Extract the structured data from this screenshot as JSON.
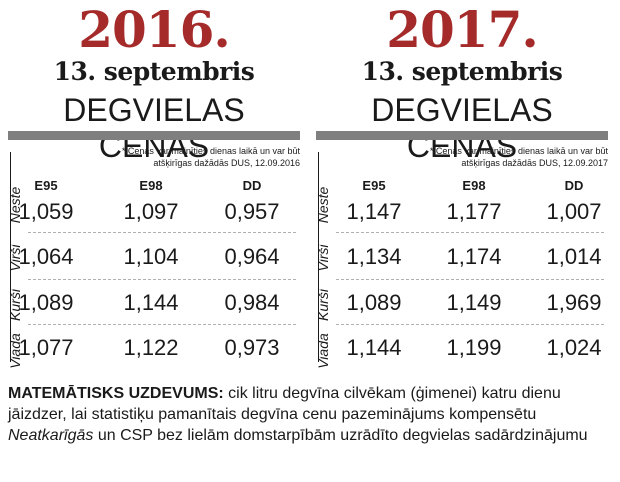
{
  "colors": {
    "year": "#a52a2a",
    "rule": "#7f7f7f",
    "text": "#1a1a1a"
  },
  "panels": [
    {
      "year": "2016.",
      "date": "13. septembris",
      "heading": "DEGVIELAS CENAS",
      "note_line1": "* Cenas var mainīties dienas laikā un var būt",
      "note_line2": "atšķirīgas dažādās DUS, 12.09.2016",
      "columns": [
        "E95",
        "E98",
        "DD"
      ],
      "rows": [
        {
          "station": "Neste",
          "values": [
            "1,059",
            "1,097",
            "0,957"
          ]
        },
        {
          "station": "Virši",
          "values": [
            "1,064",
            "1,104",
            "0,964"
          ]
        },
        {
          "station": "Kurši",
          "values": [
            "1,089",
            "1,144",
            "0,984"
          ]
        },
        {
          "station": "Viada",
          "values": [
            "1,077",
            "1,122",
            "0,973"
          ]
        }
      ]
    },
    {
      "year": "2017.",
      "date": "13. septembris",
      "heading": "DEGVIELAS CENAS",
      "note_line1": "* Cenas var mainīties dienas laikā un var būt",
      "note_line2": "atšķirīgas dažādās DUS, 12.09.2017",
      "columns": [
        "E95",
        "E98",
        "DD"
      ],
      "rows": [
        {
          "station": "Neste",
          "values": [
            "1,147",
            "1,177",
            "1,007"
          ]
        },
        {
          "station": "Virši",
          "values": [
            "1,134",
            "1,174",
            "1,014"
          ]
        },
        {
          "station": "Kurši",
          "values": [
            "1,089",
            "1,149",
            "1,969"
          ]
        },
        {
          "station": "Viada",
          "values": [
            "1,144",
            "1,199",
            "1,024"
          ]
        }
      ]
    }
  ],
  "footer": {
    "bold_lead": "MATEMĀTISKS UZDEVUMS:",
    "text_before": " cik litru degvīna cilvēkam (ģimenei) katru dienu jāizdzer, lai statistiķu pamanītais degvīna cenu pazeminājums kompensētu ",
    "italic": "Neatkarīgās",
    "text_after": " un CSP bez lielām domstarpībām uzrādīto degvielas sadārdzinājumu"
  }
}
